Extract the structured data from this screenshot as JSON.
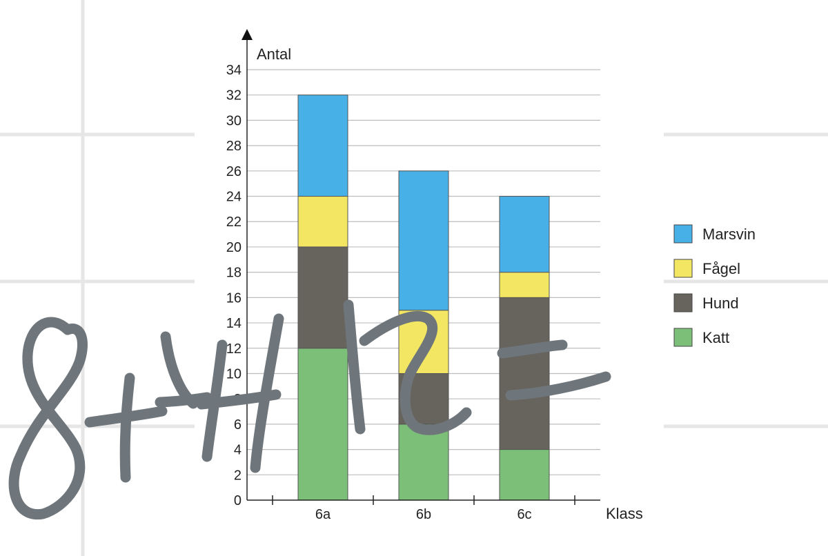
{
  "chart_data": {
    "type": "bar",
    "stacked": true,
    "categories": [
      "6a",
      "6b",
      "6c"
    ],
    "series": [
      {
        "name": "Katt",
        "color": "#7bbf78",
        "values": [
          12,
          6,
          4
        ]
      },
      {
        "name": "Hund",
        "color": "#67635d",
        "values": [
          8,
          4,
          12
        ]
      },
      {
        "name": "Fågel",
        "color": "#f2e663",
        "values": [
          4,
          5,
          2
        ]
      },
      {
        "name": "Marsvin",
        "color": "#47b0e6",
        "values": [
          8,
          11,
          6
        ]
      }
    ],
    "ylabel": "Antal",
    "xlabel": "Klass",
    "ylim": [
      0,
      34
    ],
    "yticks": [
      0,
      2,
      4,
      6,
      8,
      10,
      12,
      14,
      16,
      18,
      20,
      22,
      24,
      26,
      28,
      30,
      32,
      34
    ],
    "grid": true,
    "legend_order": [
      "Marsvin",
      "Fågel",
      "Hund",
      "Katt"
    ],
    "legend_position": "right"
  },
  "handwriting": "8+4+12="
}
